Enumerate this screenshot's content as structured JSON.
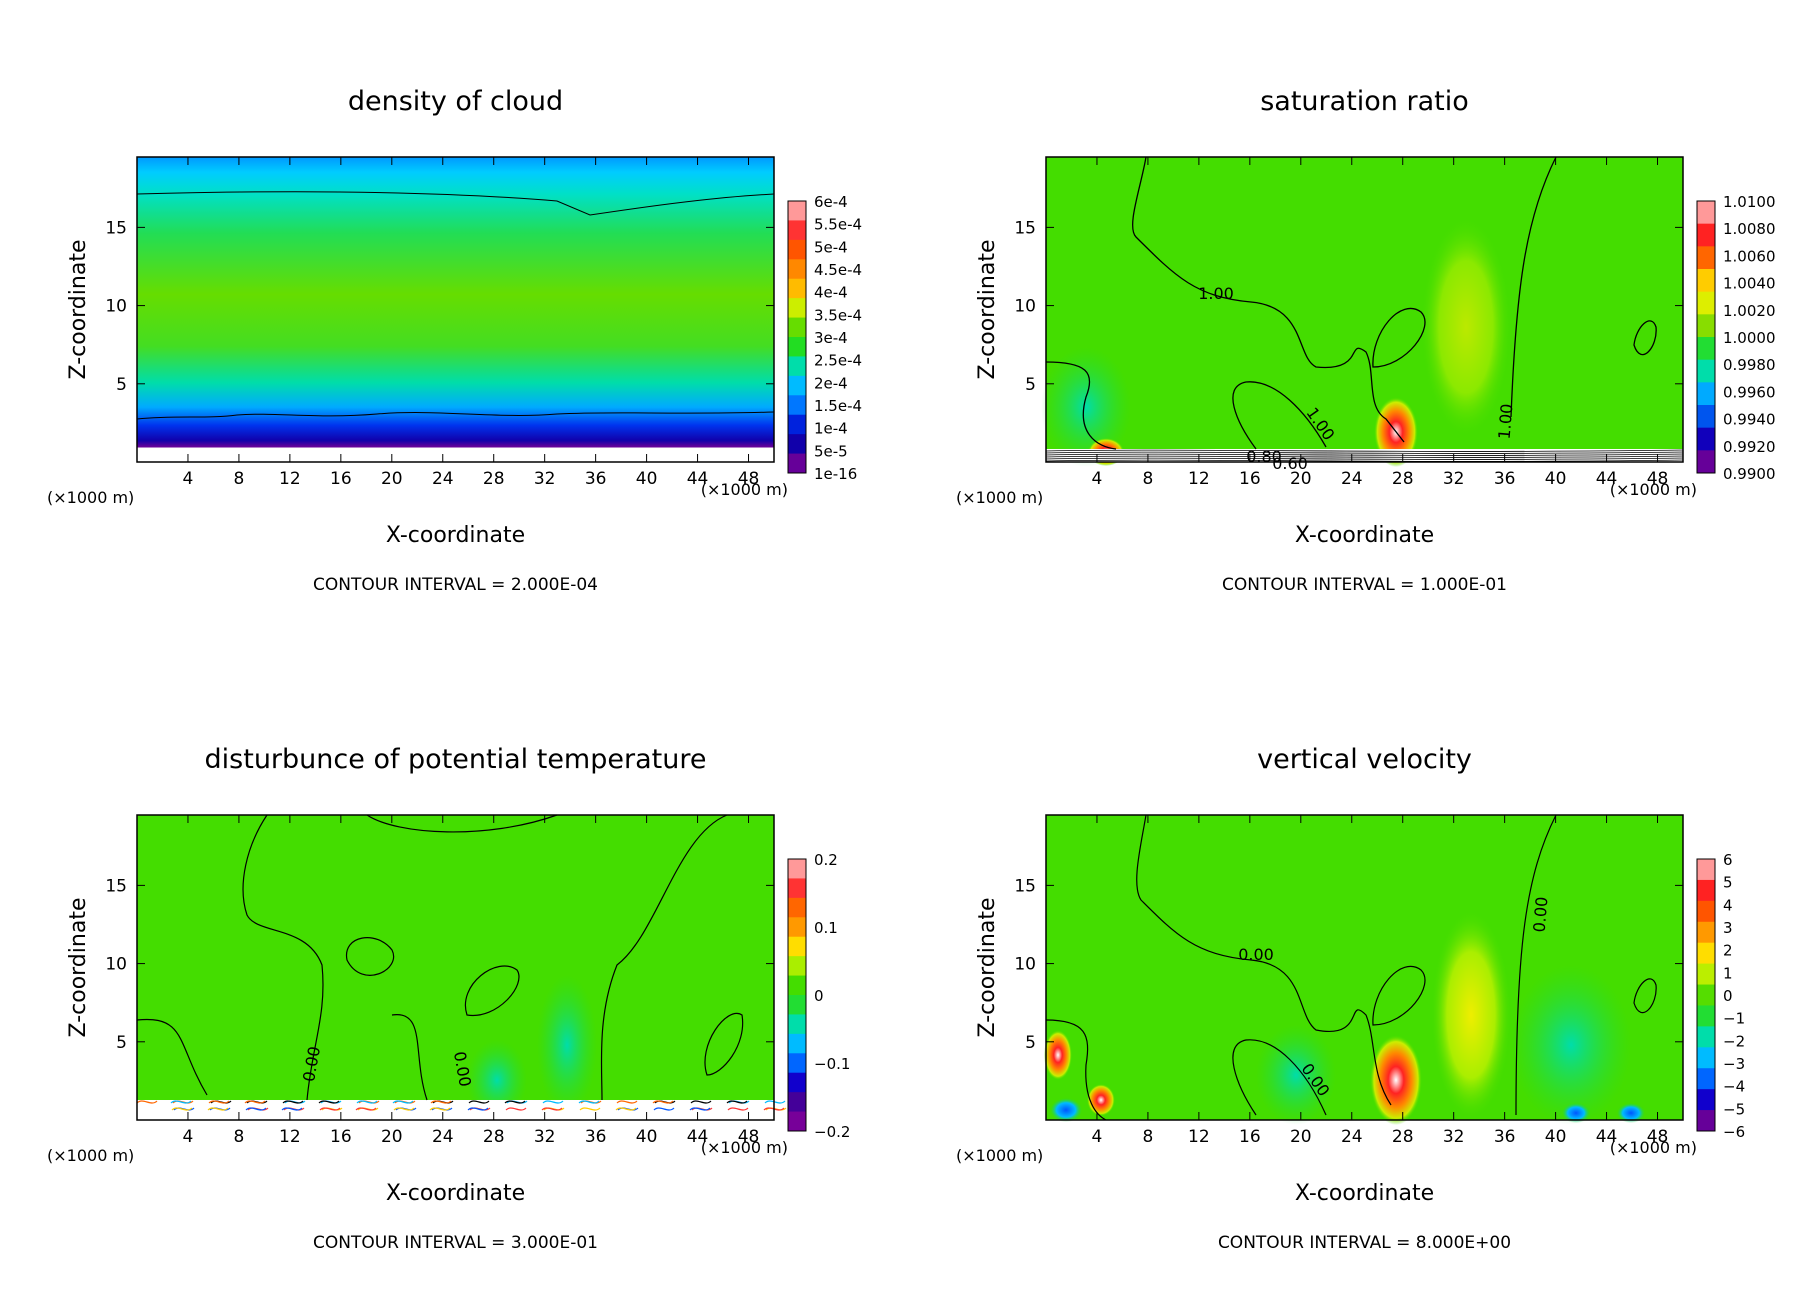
{
  "chart_data": [
    {
      "type": "heatmap",
      "title": "density of cloud",
      "xlabel": "X-coordinate",
      "ylabel": "Z-coordinate",
      "x_unit_left": "(×1000 m)",
      "x_unit_right": "(×1000 m)",
      "xlim": [
        0,
        50
      ],
      "ylim": [
        0,
        19.5
      ],
      "xticks": [
        "4",
        "8",
        "12",
        "16",
        "20",
        "24",
        "28",
        "32",
        "36",
        "40",
        "44",
        "48"
      ],
      "yticks": [
        "5",
        "10",
        "15"
      ],
      "colorbar": {
        "labels": [
          "6e-4",
          "5.5e-4",
          "5e-4",
          "4.5e-4",
          "4e-4",
          "3.5e-4",
          "3e-4",
          "2.5e-4",
          "2e-4",
          "1.5e-4",
          "1e-4",
          "5e-5",
          "1e-16"
        ],
        "colors": [
          "#ff9999",
          "#ff3333",
          "#ff5500",
          "#ff8800",
          "#ffbb00",
          "#ccee00",
          "#66dd00",
          "#22dd22",
          "#00ddaa",
          "#00bbff",
          "#0077ff",
          "#0022dd",
          "#1100aa",
          "#660099"
        ]
      },
      "contour_labels": [],
      "contour_interval": "CONTOUR INTERVAL = 2.000E-04"
    },
    {
      "type": "heatmap",
      "title": "saturation ratio",
      "xlabel": "X-coordinate",
      "ylabel": "Z-coordinate",
      "x_unit_left": "(×1000 m)",
      "x_unit_right": "(×1000 m)",
      "xlim": [
        0,
        50
      ],
      "ylim": [
        0,
        19.5
      ],
      "xticks": [
        "4",
        "8",
        "12",
        "16",
        "20",
        "24",
        "28",
        "32",
        "36",
        "40",
        "44",
        "48"
      ],
      "yticks": [
        "5",
        "10",
        "15"
      ],
      "colorbar": {
        "labels": [
          "1.0100",
          "1.0080",
          "1.0060",
          "1.0040",
          "1.0020",
          "1.0000",
          "0.9980",
          "0.9960",
          "0.9940",
          "0.9920",
          "0.9900"
        ],
        "colors": [
          "#ff9999",
          "#ff2222",
          "#ff6600",
          "#ffcc00",
          "#ddee00",
          "#88dd00",
          "#22dd33",
          "#00ddaa",
          "#00aaff",
          "#0055ee",
          "#1100bb",
          "#660099"
        ]
      },
      "contour_labels": [
        "1.00",
        "1.00",
        "1.00",
        "0.80",
        "0.60"
      ],
      "contour_interval": "CONTOUR INTERVAL = 1.000E-01"
    },
    {
      "type": "heatmap",
      "title": "disturbunce of potential temperature",
      "xlabel": "X-coordinate",
      "ylabel": "Z-coordinate",
      "x_unit_left": "(×1000 m)",
      "x_unit_right": "(×1000 m)",
      "xlim": [
        0,
        50
      ],
      "ylim": [
        0,
        19.5
      ],
      "xticks": [
        "4",
        "8",
        "12",
        "16",
        "20",
        "24",
        "28",
        "32",
        "36",
        "40",
        "44",
        "48"
      ],
      "yticks": [
        "5",
        "10",
        "15"
      ],
      "colorbar": {
        "labels": [
          "0.2",
          "0.1",
          "0",
          "−0.1",
          "−0.2"
        ],
        "colors": [
          "#ff9999",
          "#ff3333",
          "#ff6600",
          "#ff9900",
          "#ffdd00",
          "#aaee00",
          "#44dd00",
          "#22dd33",
          "#00ddaa",
          "#00bbff",
          "#0066ff",
          "#1100cc",
          "#440099",
          "#770099"
        ]
      },
      "contour_labels": [
        "0.00",
        "0.00"
      ],
      "contour_interval": "CONTOUR INTERVAL = 3.000E-01"
    },
    {
      "type": "heatmap",
      "title": "vertical velocity",
      "xlabel": "X-coordinate",
      "ylabel": "Z-coordinate",
      "x_unit_left": "(×1000 m)",
      "x_unit_right": "(×1000 m)",
      "xlim": [
        0,
        50
      ],
      "ylim": [
        0,
        19.5
      ],
      "xticks": [
        "4",
        "8",
        "12",
        "16",
        "20",
        "24",
        "28",
        "32",
        "36",
        "40",
        "44",
        "48"
      ],
      "yticks": [
        "5",
        "10",
        "15"
      ],
      "colorbar": {
        "labels": [
          "6",
          "5",
          "4",
          "3",
          "2",
          "1",
          "0",
          "−1",
          "−2",
          "−3",
          "−4",
          "−5",
          "−6"
        ],
        "colors": [
          "#ff9999",
          "#ff2222",
          "#ff5500",
          "#ff9900",
          "#ffdd00",
          "#bbee00",
          "#55dd00",
          "#22dd33",
          "#00ddaa",
          "#00bbff",
          "#0066ff",
          "#1100cc",
          "#660099"
        ]
      },
      "contour_labels": [
        "0.00",
        "0.00",
        "0.00"
      ],
      "contour_interval": "CONTOUR INTERVAL = 8.000E+00"
    }
  ]
}
